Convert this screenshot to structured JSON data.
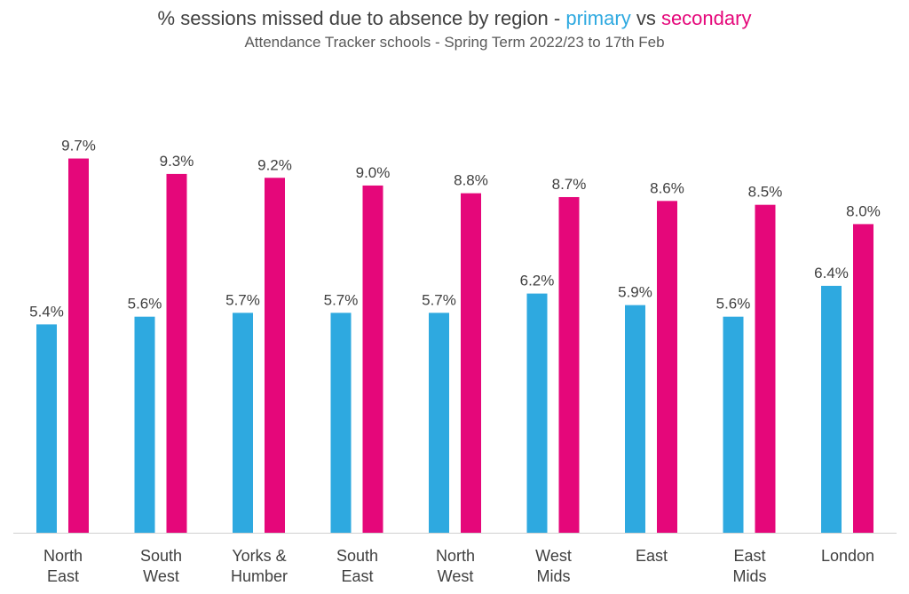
{
  "chart_data": {
    "type": "bar",
    "title": {
      "prefix": "% sessions missed due to absence by region - ",
      "primary_word": "primary",
      "middle": " vs ",
      "secondary_word": "secondary"
    },
    "subtitle": "Attendance Tracker schools - Spring Term 2022/23 to 17th Feb",
    "categories": [
      [
        "North",
        "East"
      ],
      [
        "South",
        "West"
      ],
      [
        "Yorks &",
        "Humber"
      ],
      [
        "South",
        "East"
      ],
      [
        "North",
        "West"
      ],
      [
        "West",
        "Mids"
      ],
      [
        "East"
      ],
      [
        "East",
        "Mids"
      ],
      [
        "London"
      ]
    ],
    "series": [
      {
        "key": "primary",
        "color": "#2EA9E0",
        "values": [
          5.4,
          5.6,
          5.7,
          5.7,
          5.7,
          6.2,
          5.9,
          5.6,
          6.4
        ],
        "labels": [
          "5.4%",
          "5.6%",
          "5.7%",
          "5.7%",
          "5.7%",
          "6.2%",
          "5.9%",
          "5.6%",
          "6.4%"
        ]
      },
      {
        "key": "secondary",
        "color": "#E5077A",
        "values": [
          9.7,
          9.3,
          9.2,
          9.0,
          8.8,
          8.7,
          8.6,
          8.5,
          8.0
        ],
        "labels": [
          "9.7%",
          "9.3%",
          "9.2%",
          "9.0%",
          "8.8%",
          "8.7%",
          "8.6%",
          "8.5%",
          "8.0%"
        ]
      }
    ],
    "xlabel": "",
    "ylabel": "",
    "ylim": [
      0,
      10
    ],
    "y_axis_visible": false,
    "grid": false,
    "legend": "none"
  }
}
